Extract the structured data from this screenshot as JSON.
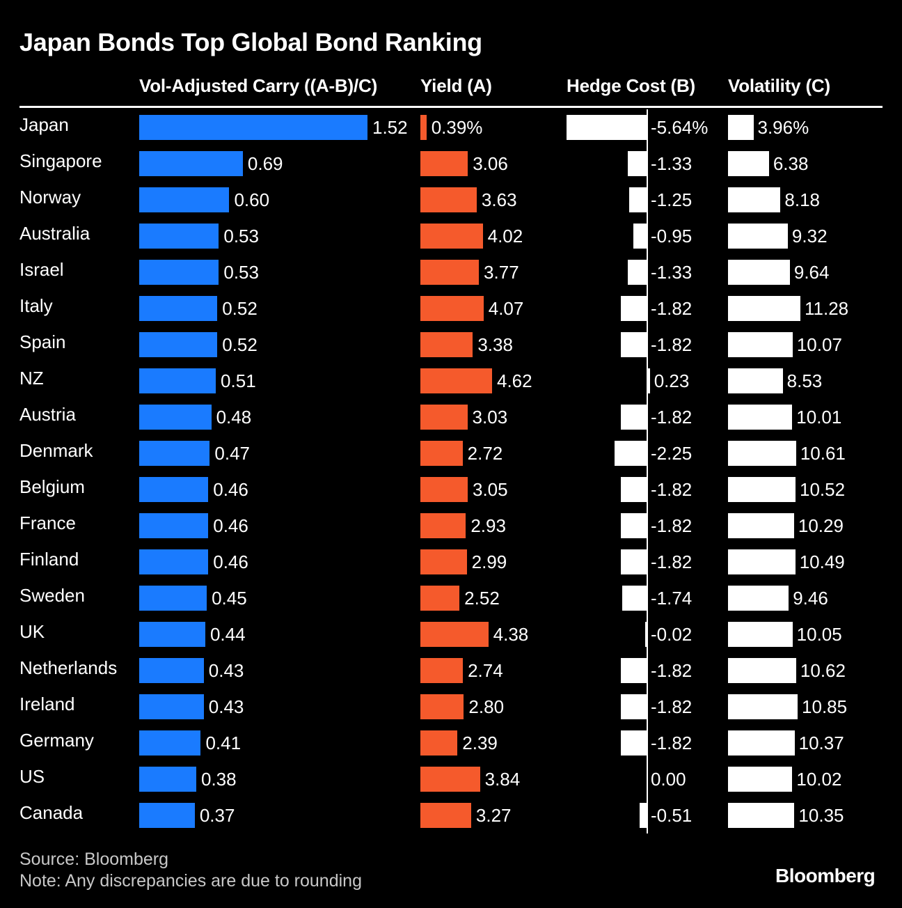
{
  "chart_data": {
    "type": "table",
    "title": "Japan Bonds Top Global Bond Ranking",
    "columns": [
      {
        "key": "carry",
        "label": "Vol-Adjusted Carry ((A-B)/C)",
        "color": "#1a7bff"
      },
      {
        "key": "yield",
        "label": "Yield (A)",
        "color": "#f55a2c"
      },
      {
        "key": "hedge",
        "label": "Hedge Cost (B)",
        "color": "#ffffff"
      },
      {
        "key": "vol",
        "label": "Volatility (C)",
        "color": "#ffffff"
      }
    ],
    "rows": [
      {
        "country": "Japan",
        "carry": 1.52,
        "carry_label": "1.52",
        "yield": 0.39,
        "yield_label": "0.39%",
        "hedge": -5.64,
        "hedge_label": "-5.64%",
        "vol": 3.96,
        "vol_label": "3.96%"
      },
      {
        "country": "Singapore",
        "carry": 0.69,
        "carry_label": "0.69",
        "yield": 3.06,
        "yield_label": "3.06",
        "hedge": -1.33,
        "hedge_label": "-1.33",
        "vol": 6.38,
        "vol_label": "6.38"
      },
      {
        "country": "Norway",
        "carry": 0.6,
        "carry_label": "0.60",
        "yield": 3.63,
        "yield_label": "3.63",
        "hedge": -1.25,
        "hedge_label": "-1.25",
        "vol": 8.18,
        "vol_label": "8.18"
      },
      {
        "country": "Australia",
        "carry": 0.53,
        "carry_label": "0.53",
        "yield": 4.02,
        "yield_label": "4.02",
        "hedge": -0.95,
        "hedge_label": "-0.95",
        "vol": 9.32,
        "vol_label": "9.32"
      },
      {
        "country": "Israel",
        "carry": 0.53,
        "carry_label": "0.53",
        "yield": 3.77,
        "yield_label": "3.77",
        "hedge": -1.33,
        "hedge_label": "-1.33",
        "vol": 9.64,
        "vol_label": "9.64"
      },
      {
        "country": "Italy",
        "carry": 0.52,
        "carry_label": "0.52",
        "yield": 4.07,
        "yield_label": "4.07",
        "hedge": -1.82,
        "hedge_label": "-1.82",
        "vol": 11.28,
        "vol_label": "11.28"
      },
      {
        "country": "Spain",
        "carry": 0.52,
        "carry_label": "0.52",
        "yield": 3.38,
        "yield_label": "3.38",
        "hedge": -1.82,
        "hedge_label": "-1.82",
        "vol": 10.07,
        "vol_label": "10.07"
      },
      {
        "country": "NZ",
        "carry": 0.51,
        "carry_label": "0.51",
        "yield": 4.62,
        "yield_label": "4.62",
        "hedge": 0.23,
        "hedge_label": "0.23",
        "vol": 8.53,
        "vol_label": "8.53"
      },
      {
        "country": "Austria",
        "carry": 0.48,
        "carry_label": "0.48",
        "yield": 3.03,
        "yield_label": "3.03",
        "hedge": -1.82,
        "hedge_label": "-1.82",
        "vol": 10.01,
        "vol_label": "10.01"
      },
      {
        "country": "Denmark",
        "carry": 0.47,
        "carry_label": "0.47",
        "yield": 2.72,
        "yield_label": "2.72",
        "hedge": -2.25,
        "hedge_label": "-2.25",
        "vol": 10.61,
        "vol_label": "10.61"
      },
      {
        "country": "Belgium",
        "carry": 0.46,
        "carry_label": "0.46",
        "yield": 3.05,
        "yield_label": "3.05",
        "hedge": -1.82,
        "hedge_label": "-1.82",
        "vol": 10.52,
        "vol_label": "10.52"
      },
      {
        "country": "France",
        "carry": 0.46,
        "carry_label": "0.46",
        "yield": 2.93,
        "yield_label": "2.93",
        "hedge": -1.82,
        "hedge_label": "-1.82",
        "vol": 10.29,
        "vol_label": "10.29"
      },
      {
        "country": "Finland",
        "carry": 0.46,
        "carry_label": "0.46",
        "yield": 2.99,
        "yield_label": "2.99",
        "hedge": -1.82,
        "hedge_label": "-1.82",
        "vol": 10.49,
        "vol_label": "10.49"
      },
      {
        "country": "Sweden",
        "carry": 0.45,
        "carry_label": "0.45",
        "yield": 2.52,
        "yield_label": "2.52",
        "hedge": -1.74,
        "hedge_label": "-1.74",
        "vol": 9.46,
        "vol_label": "9.46"
      },
      {
        "country": "UK",
        "carry": 0.44,
        "carry_label": "0.44",
        "yield": 4.38,
        "yield_label": "4.38",
        "hedge": -0.02,
        "hedge_label": "-0.02",
        "vol": 10.05,
        "vol_label": "10.05"
      },
      {
        "country": "Netherlands",
        "carry": 0.43,
        "carry_label": "0.43",
        "yield": 2.74,
        "yield_label": "2.74",
        "hedge": -1.82,
        "hedge_label": "-1.82",
        "vol": 10.62,
        "vol_label": "10.62"
      },
      {
        "country": "Ireland",
        "carry": 0.43,
        "carry_label": "0.43",
        "yield": 2.8,
        "yield_label": "2.80",
        "hedge": -1.82,
        "hedge_label": "-1.82",
        "vol": 10.85,
        "vol_label": "10.85"
      },
      {
        "country": "Germany",
        "carry": 0.41,
        "carry_label": "0.41",
        "yield": 2.39,
        "yield_label": "2.39",
        "hedge": -1.82,
        "hedge_label": "-1.82",
        "vol": 10.37,
        "vol_label": "10.37"
      },
      {
        "country": "US",
        "carry": 0.38,
        "carry_label": "0.38",
        "yield": 3.84,
        "yield_label": "3.84",
        "hedge": 0.0,
        "hedge_label": "0.00",
        "vol": 10.02,
        "vol_label": "10.02"
      },
      {
        "country": "Canada",
        "carry": 0.37,
        "carry_label": "0.37",
        "yield": 3.27,
        "yield_label": "3.27",
        "hedge": -0.51,
        "hedge_label": "-0.51",
        "vol": 10.35,
        "vol_label": "10.35"
      }
    ]
  },
  "footer": {
    "source": "Source: Bloomberg",
    "note": "Note: Any discrepancies are due to rounding",
    "brand": "Bloomberg"
  }
}
